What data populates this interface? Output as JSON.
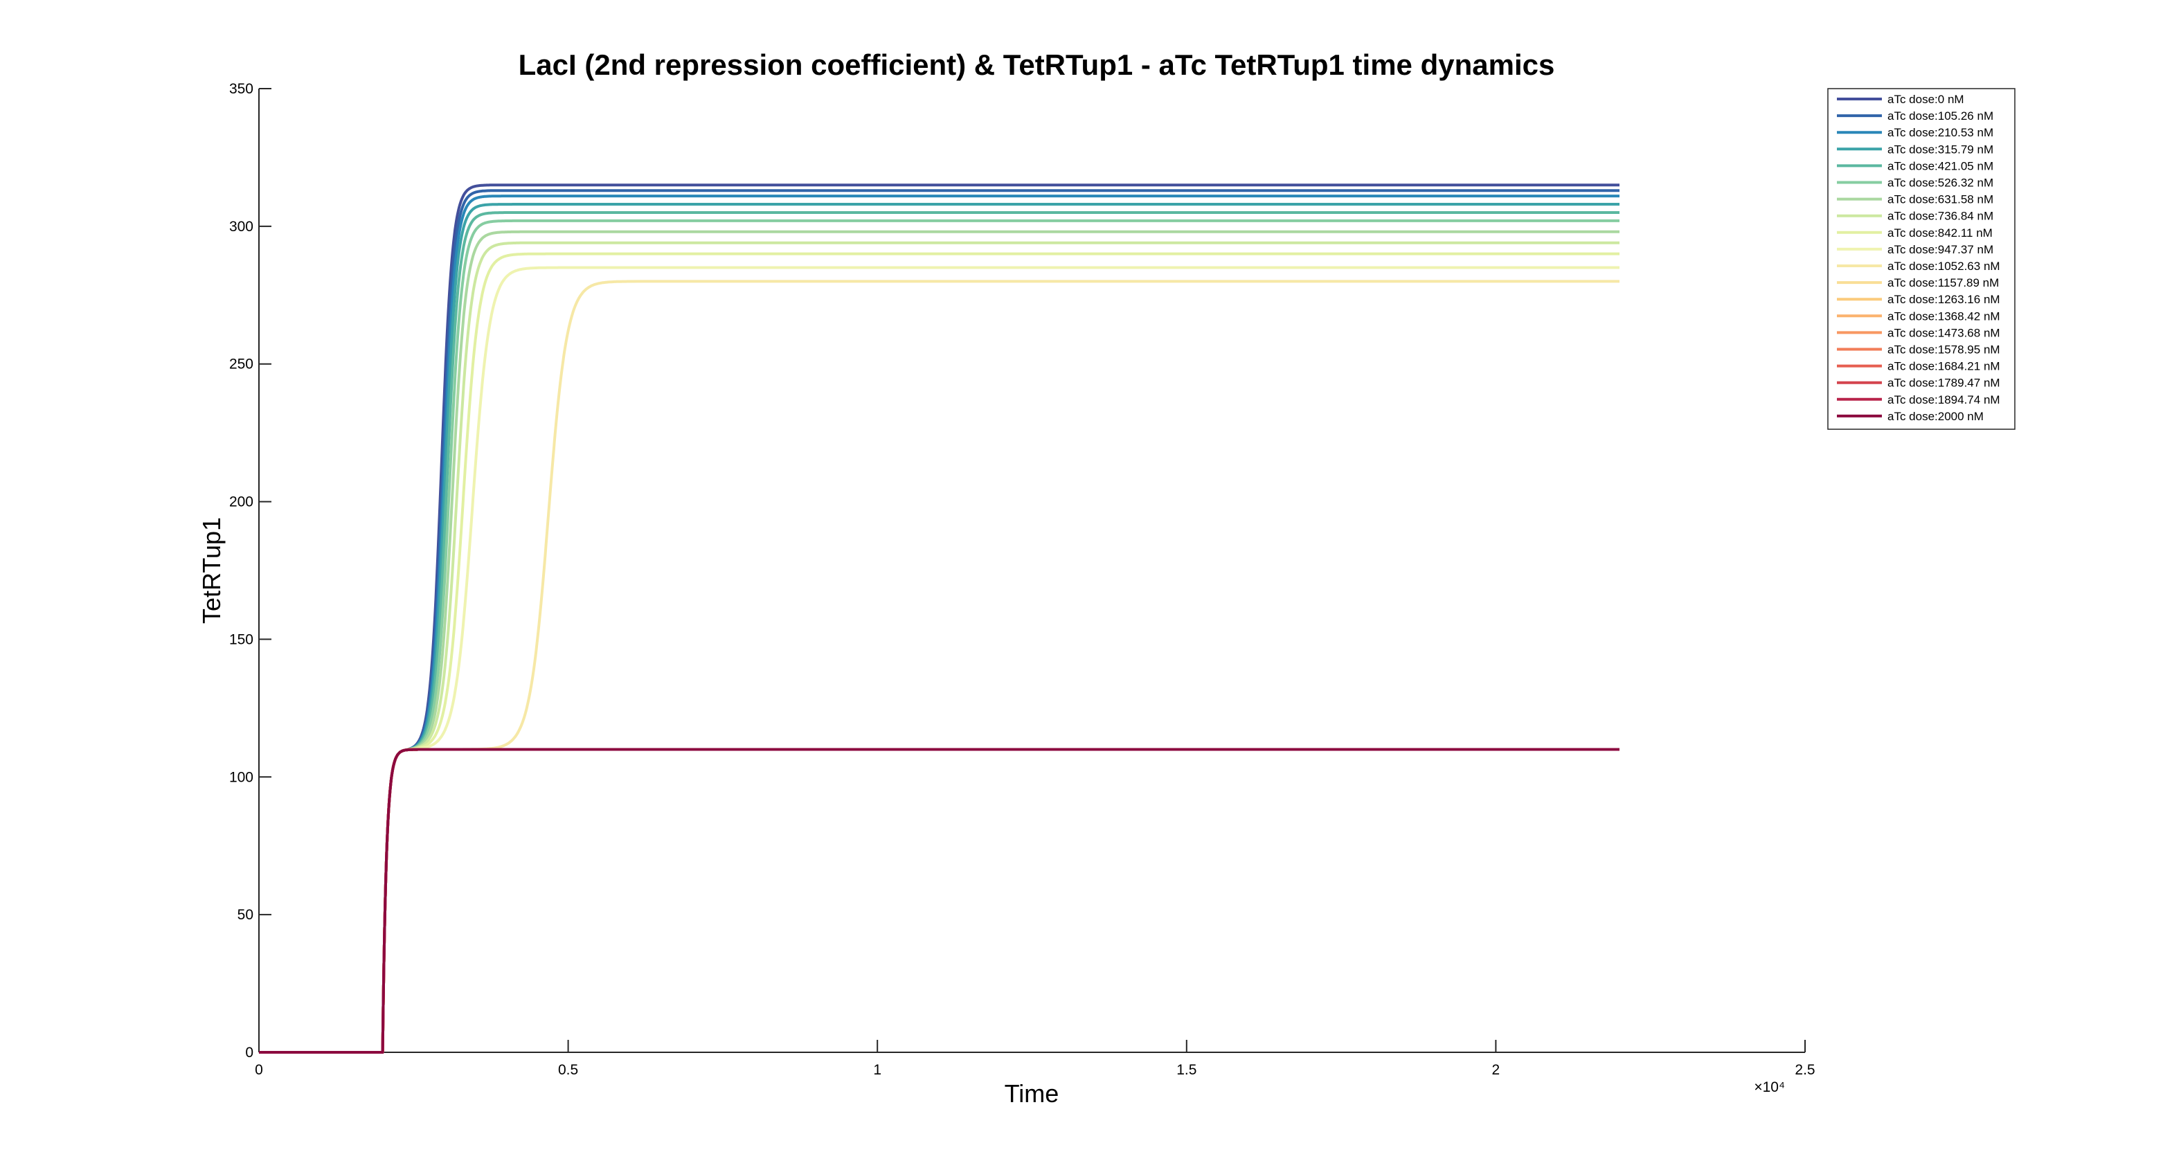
{
  "chart_data": {
    "type": "line",
    "title": "LacI (2nd repression coefficient) & TetRTup1 - aTc TetRTup1 time dynamics",
    "xlabel": "Time",
    "ylabel": "TetRTup1",
    "xlim": [
      0,
      25000
    ],
    "ylim": [
      0,
      350
    ],
    "x_ticks": [
      0,
      5000,
      10000,
      15000,
      20000,
      25000
    ],
    "x_tick_labels": [
      "0",
      "0.5",
      "1",
      "1.5",
      "2",
      "2.5"
    ],
    "x_exponent_label": "×10⁴",
    "y_ticks": [
      0,
      50,
      100,
      150,
      200,
      250,
      300,
      350
    ],
    "y_tick_labels": [
      "0",
      "50",
      "100",
      "150",
      "200",
      "250",
      "300",
      "350"
    ],
    "grid": false,
    "legend_position": "top-right (outside plot)",
    "curve_model": "all series: step 0→110 at t≈2000 (time constant ≈60), then logistic rise from 110 to plateau at rise_center with rise_width; series with plateau 110 stay flat",
    "x_end": 22000,
    "series": [
      {
        "name": "aTc dose:0 nM",
        "color": "#434f9b",
        "plateau": 315,
        "rise_center": 2950,
        "rise_width": 90
      },
      {
        "name": "aTc dose:105.26 nM",
        "color": "#3164a9",
        "plateau": 313,
        "rise_center": 2970,
        "rise_width": 92
      },
      {
        "name": "aTc dose:210.53 nM",
        "color": "#2a87b8",
        "plateau": 311,
        "rise_center": 2990,
        "rise_width": 94
      },
      {
        "name": "aTc dose:315.79 nM",
        "color": "#3ba3a8",
        "plateau": 308,
        "rise_center": 3010,
        "rise_width": 96
      },
      {
        "name": "aTc dose:421.05 nM",
        "color": "#5bb8a0",
        "plateau": 305,
        "rise_center": 3040,
        "rise_width": 100
      },
      {
        "name": "aTc dose:526.32 nM",
        "color": "#86cda1",
        "plateau": 302,
        "rise_center": 3080,
        "rise_width": 105
      },
      {
        "name": "aTc dose:631.58 nM",
        "color": "#aad8a0",
        "plateau": 298,
        "rise_center": 3130,
        "rise_width": 110
      },
      {
        "name": "aTc dose:736.84 nM",
        "color": "#cce8a0",
        "plateau": 294,
        "rise_center": 3200,
        "rise_width": 118
      },
      {
        "name": "aTc dose:842.11 nM",
        "color": "#e2f0a2",
        "plateau": 290,
        "rise_center": 3300,
        "rise_width": 128
      },
      {
        "name": "aTc dose:947.37 nM",
        "color": "#eff3b0",
        "plateau": 285,
        "rise_center": 3450,
        "rise_width": 140
      },
      {
        "name": "aTc dose:1052.63 nM",
        "color": "#f6e8a6",
        "plateau": 280,
        "rise_center": 4680,
        "rise_width": 150
      },
      {
        "name": "aTc dose:1157.89 nM",
        "color": "#f9de96",
        "plateau": 110,
        "rise_center": 0,
        "rise_width": 1
      },
      {
        "name": "aTc dose:1263.16 nM",
        "color": "#fbcb7c",
        "plateau": 110,
        "rise_center": 0,
        "rise_width": 1
      },
      {
        "name": "aTc dose:1368.42 nM",
        "color": "#fbb36e",
        "plateau": 110,
        "rise_center": 0,
        "rise_width": 1
      },
      {
        "name": "aTc dose:1473.68 nM",
        "color": "#f89862",
        "plateau": 110,
        "rise_center": 0,
        "rise_width": 1
      },
      {
        "name": "aTc dose:1578.95 nM",
        "color": "#f27d58",
        "plateau": 110,
        "rise_center": 0,
        "rise_width": 1
      },
      {
        "name": "aTc dose:1684.21 nM",
        "color": "#e65f51",
        "plateau": 110,
        "rise_center": 0,
        "rise_width": 1
      },
      {
        "name": "aTc dose:1789.47 nM",
        "color": "#d4444e",
        "plateau": 110,
        "rise_center": 0,
        "rise_width": 1
      },
      {
        "name": "aTc dose:1894.74 nM",
        "color": "#b8234a",
        "plateau": 110,
        "rise_center": 0,
        "rise_width": 1
      },
      {
        "name": "aTc dose:2000 nM",
        "color": "#8c0a3f",
        "plateau": 110,
        "rise_center": 0,
        "rise_width": 1
      }
    ]
  }
}
